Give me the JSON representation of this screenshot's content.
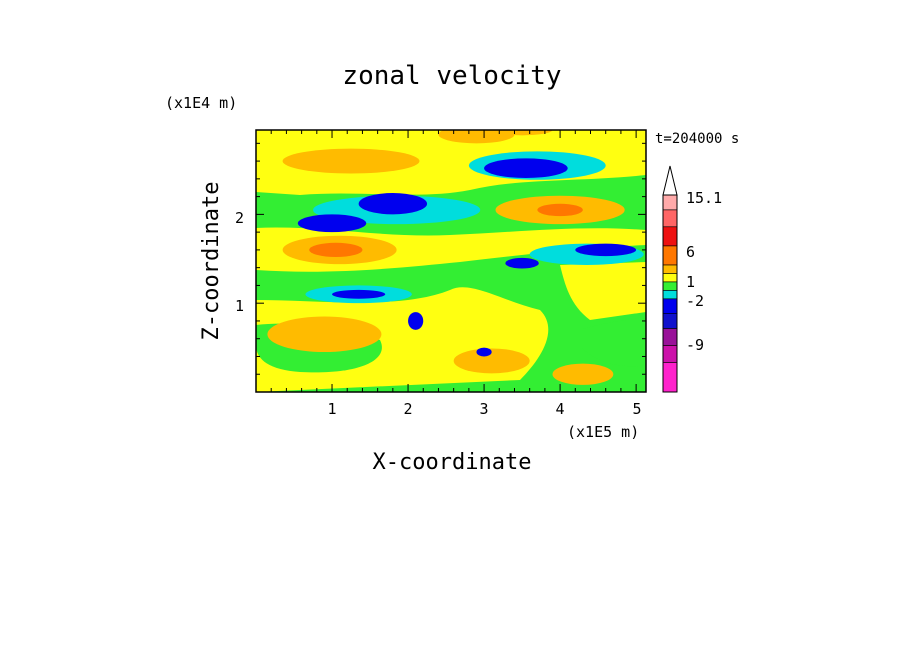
{
  "chart_data": {
    "type": "heatmap",
    "title": "zonal velocity",
    "time_label": "t=204000 s",
    "xlabel": "X-coordinate",
    "ylabel": "Z-coordinate",
    "x_scale_label": "(x1E5 m)",
    "y_scale_label": "(x1E4 m)",
    "xlim": [
      0,
      5.13
    ],
    "ylim": [
      0,
      2.95
    ],
    "x_ticks": [
      "1",
      "2",
      "3",
      "4",
      "5"
    ],
    "y_ticks": [
      "1",
      "2"
    ],
    "colorbar": {
      "labels": [
        "15.1",
        "6",
        "1",
        "-2",
        "-9"
      ],
      "bands_bottom_to_top": [
        {
          "color": "#ff22cc"
        },
        {
          "color": "#cc11aa"
        },
        {
          "color": "#991199"
        },
        {
          "color": "#1111cc"
        },
        {
          "color": "#0000ee"
        },
        {
          "color": "#00dddd"
        },
        {
          "color": "#33ee33"
        },
        {
          "color": "#ffff11"
        },
        {
          "color": "#ffbb00"
        },
        {
          "color": "#ff7700"
        },
        {
          "color": "#ee1111"
        },
        {
          "color": "#ff6666"
        },
        {
          "color": "#ffaaaa"
        },
        {
          "color": "#ffffff"
        }
      ]
    },
    "field_regions": [
      {
        "color": "#00dddd",
        "cx": 1.85,
        "cy": 2.05,
        "rx": 1.1,
        "ry": 0.16
      },
      {
        "color": "#0000ee",
        "cx": 1.8,
        "cy": 2.12,
        "rx": 0.45,
        "ry": 0.12
      },
      {
        "color": "#0000ee",
        "cx": 1.0,
        "cy": 1.9,
        "rx": 0.45,
        "ry": 0.1
      },
      {
        "color": "#00dddd",
        "cx": 3.7,
        "cy": 2.55,
        "rx": 0.9,
        "ry": 0.16
      },
      {
        "color": "#0000ee",
        "cx": 3.55,
        "cy": 2.52,
        "rx": 0.55,
        "ry": 0.11
      },
      {
        "color": "#ffbb00",
        "cx": 1.1,
        "cy": 1.6,
        "rx": 0.75,
        "ry": 0.16
      },
      {
        "color": "#ff7700",
        "cx": 1.05,
        "cy": 1.6,
        "rx": 0.35,
        "ry": 0.08
      },
      {
        "color": "#ffbb00",
        "cx": 1.25,
        "cy": 2.6,
        "rx": 0.9,
        "ry": 0.14
      },
      {
        "color": "#ffbb00",
        "cx": 4.0,
        "cy": 2.05,
        "rx": 0.85,
        "ry": 0.16
      },
      {
        "color": "#ff7700",
        "cx": 4.0,
        "cy": 2.05,
        "rx": 0.3,
        "ry": 0.07
      },
      {
        "color": "#00dddd",
        "cx": 4.35,
        "cy": 1.55,
        "rx": 0.75,
        "ry": 0.12
      },
      {
        "color": "#0000ee",
        "cx": 4.6,
        "cy": 1.6,
        "rx": 0.4,
        "ry": 0.07
      },
      {
        "color": "#0000ee",
        "cx": 3.5,
        "cy": 1.45,
        "rx": 0.22,
        "ry": 0.06
      },
      {
        "color": "#ffbb00",
        "cx": 0.9,
        "cy": 0.65,
        "rx": 0.75,
        "ry": 0.2
      },
      {
        "color": "#ffbb00",
        "cx": 3.1,
        "cy": 0.35,
        "rx": 0.5,
        "ry": 0.14
      },
      {
        "color": "#00dddd",
        "cx": 1.35,
        "cy": 1.1,
        "rx": 0.7,
        "ry": 0.1
      },
      {
        "color": "#0000ee",
        "cx": 1.35,
        "cy": 1.1,
        "rx": 0.35,
        "ry": 0.05
      },
      {
        "color": "#0000ee",
        "cx": 2.1,
        "cy": 0.8,
        "rx": 0.1,
        "ry": 0.1
      },
      {
        "color": "#0000ee",
        "cx": 3.0,
        "cy": 0.45,
        "rx": 0.1,
        "ry": 0.05
      },
      {
        "color": "#ffbb00",
        "cx": 4.3,
        "cy": 0.2,
        "rx": 0.4,
        "ry": 0.12
      },
      {
        "color": "#ffbb00",
        "cx": 2.9,
        "cy": 2.9,
        "rx": 0.5,
        "ry": 0.1
      },
      {
        "color": "#ffbb00",
        "cx": 3.5,
        "cy": 2.95,
        "rx": 0.4,
        "ry": 0.06
      }
    ]
  }
}
